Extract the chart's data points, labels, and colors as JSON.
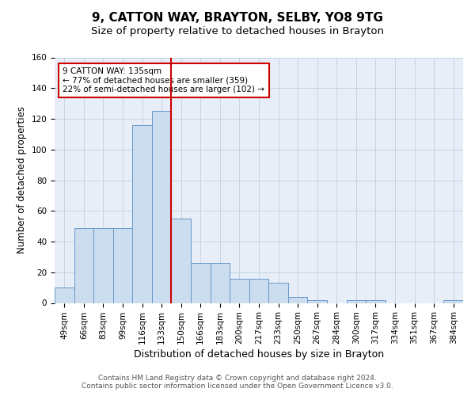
{
  "title1": "9, CATTON WAY, BRAYTON, SELBY, YO8 9TG",
  "title2": "Size of property relative to detached houses in Brayton",
  "xlabel": "Distribution of detached houses by size in Brayton",
  "ylabel": "Number of detached properties",
  "bin_labels": [
    "49sqm",
    "66sqm",
    "83sqm",
    "99sqm",
    "116sqm",
    "133sqm",
    "150sqm",
    "166sqm",
    "183sqm",
    "200sqm",
    "217sqm",
    "233sqm",
    "250sqm",
    "267sqm",
    "284sqm",
    "300sqm",
    "317sqm",
    "334sqm",
    "351sqm",
    "367sqm",
    "384sqm"
  ],
  "bar_heights": [
    10,
    49,
    49,
    49,
    116,
    125,
    55,
    26,
    26,
    16,
    16,
    13,
    4,
    2,
    0,
    2,
    2,
    0,
    0,
    0,
    2
  ],
  "bar_color": "#ccddef",
  "bar_edgecolor": "#6699cc",
  "property_line_color": "#cc0000",
  "annotation_text": "9 CATTON WAY: 135sqm\n← 77% of detached houses are smaller (359)\n22% of semi-detached houses are larger (102) →",
  "annotation_box_color": "white",
  "annotation_box_edgecolor": "#cc0000",
  "ylim": [
    0,
    160
  ],
  "yticks": [
    0,
    20,
    40,
    60,
    80,
    100,
    120,
    140,
    160
  ],
  "grid_color": "#c0cfe0",
  "background_color": "#e8eef8",
  "footer_text": "Contains HM Land Registry data © Crown copyright and database right 2024.\nContains public sector information licensed under the Open Government Licence v3.0.",
  "title1_fontsize": 11,
  "title2_fontsize": 9.5,
  "xlabel_fontsize": 9,
  "ylabel_fontsize": 8.5,
  "tick_fontsize": 7.5,
  "annotation_fontsize": 7.5,
  "footer_fontsize": 6.5
}
